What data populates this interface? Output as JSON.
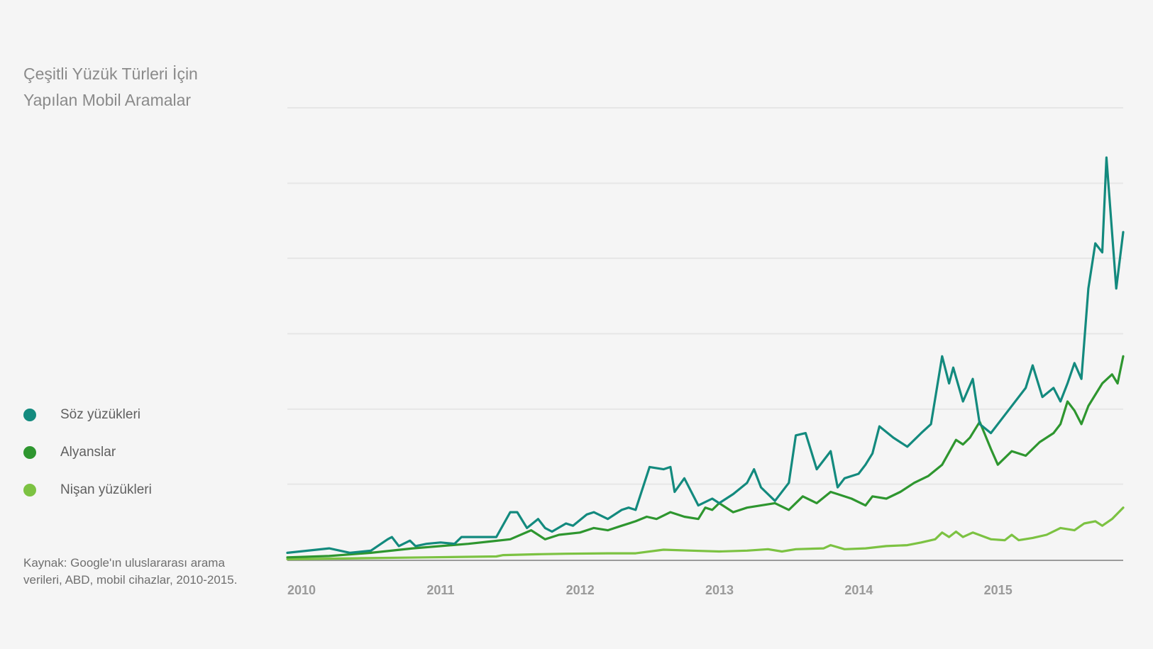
{
  "title": {
    "line1": "Çeşitli Yüzük Türleri İçin",
    "line2": "Yapılan Mobil Aramalar"
  },
  "source": {
    "line1": "Kaynak: Google'ın uluslararası arama",
    "line2": "verileri, ABD, mobil cihazlar, 2010-2015."
  },
  "colors": {
    "soz": "#138a7e",
    "alyans": "#2e962f",
    "nisan": "#7cc242",
    "grid": "#e6e6e6",
    "axis": "#9b9b9b"
  },
  "chart_data": {
    "type": "line",
    "title": "Çeşitli Yüzük Türleri İçin Yapılan Mobil Aramalar",
    "xlabel": "",
    "ylabel": "",
    "x_ticks": [
      "2010",
      "2011",
      "2012",
      "2013",
      "2014",
      "2015"
    ],
    "xlim": [
      2010.0,
      2016.0
    ],
    "ylim": [
      0,
      100
    ],
    "y_gridlines": [
      16.7,
      33.3,
      50,
      66.7,
      83.3,
      100
    ],
    "y_tick_labels_shown": false,
    "legend_position": "left-middle",
    "series": [
      {
        "name": "Söz yüzükleri",
        "color": "#138a7e",
        "points": [
          [
            2010.0,
            1.5
          ],
          [
            2010.3,
            2.5
          ],
          [
            2010.45,
            1.5
          ],
          [
            2010.6,
            2.0
          ],
          [
            2010.72,
            4.5
          ],
          [
            2010.75,
            5.0
          ],
          [
            2010.8,
            3.0
          ],
          [
            2010.88,
            4.2
          ],
          [
            2010.92,
            3.0
          ],
          [
            2011.0,
            3.5
          ],
          [
            2011.1,
            3.8
          ],
          [
            2011.2,
            3.5
          ],
          [
            2011.25,
            5.0
          ],
          [
            2011.5,
            5.0
          ],
          [
            2011.6,
            10.5
          ],
          [
            2011.65,
            10.5
          ],
          [
            2011.72,
            7.0
          ],
          [
            2011.8,
            9.0
          ],
          [
            2011.85,
            7.0
          ],
          [
            2011.9,
            6.2
          ],
          [
            2012.0,
            8.0
          ],
          [
            2012.05,
            7.5
          ],
          [
            2012.15,
            10.0
          ],
          [
            2012.2,
            10.5
          ],
          [
            2012.3,
            9.0
          ],
          [
            2012.4,
            11.0
          ],
          [
            2012.45,
            11.5
          ],
          [
            2012.5,
            11.0
          ],
          [
            2012.6,
            20.5
          ],
          [
            2012.7,
            20.0
          ],
          [
            2012.75,
            20.5
          ],
          [
            2012.78,
            15.0
          ],
          [
            2012.85,
            18.0
          ],
          [
            2012.95,
            12.0
          ],
          [
            2013.05,
            13.5
          ],
          [
            2013.1,
            12.5
          ],
          [
            2013.2,
            14.5
          ],
          [
            2013.3,
            17.0
          ],
          [
            2013.35,
            20.0
          ],
          [
            2013.4,
            16.0
          ],
          [
            2013.5,
            13.0
          ],
          [
            2013.6,
            17.0
          ],
          [
            2013.65,
            27.5
          ],
          [
            2013.72,
            28.0
          ],
          [
            2013.8,
            20.0
          ],
          [
            2013.9,
            24.0
          ],
          [
            2013.95,
            16.0
          ],
          [
            2014.0,
            18.0
          ],
          [
            2014.1,
            19.0
          ],
          [
            2014.15,
            21.0
          ],
          [
            2014.2,
            23.5
          ],
          [
            2014.25,
            29.5
          ],
          [
            2014.35,
            27.0
          ],
          [
            2014.45,
            25.0
          ],
          [
            2014.55,
            28.0
          ],
          [
            2014.62,
            30.0
          ],
          [
            2014.7,
            45.0
          ],
          [
            2014.75,
            39.0
          ],
          [
            2014.78,
            42.5
          ],
          [
            2014.85,
            35.0
          ],
          [
            2014.92,
            40.0
          ],
          [
            2014.97,
            30.0
          ],
          [
            2015.05,
            28.0
          ],
          [
            2015.15,
            32.0
          ],
          [
            2015.3,
            38.0
          ],
          [
            2015.35,
            43.0
          ],
          [
            2015.42,
            36.0
          ],
          [
            2015.5,
            38.0
          ],
          [
            2015.55,
            35.0
          ],
          [
            2015.6,
            39.0
          ],
          [
            2015.65,
            43.5
          ],
          [
            2015.7,
            40.0
          ],
          [
            2015.75,
            60.0
          ],
          [
            2015.8,
            70.0
          ],
          [
            2015.85,
            68.0
          ],
          [
            2015.88,
            89.0
          ],
          [
            2015.95,
            60.0
          ],
          [
            2016.0,
            72.5
          ]
        ]
      },
      {
        "name": "Alyanslar",
        "color": "#2e962f",
        "points": [
          [
            2010.0,
            0.5
          ],
          [
            2010.3,
            0.8
          ],
          [
            2010.6,
            1.5
          ],
          [
            2010.9,
            2.5
          ],
          [
            2011.1,
            3.0
          ],
          [
            2011.3,
            3.5
          ],
          [
            2011.45,
            4.0
          ],
          [
            2011.6,
            4.5
          ],
          [
            2011.75,
            6.5
          ],
          [
            2011.85,
            4.5
          ],
          [
            2011.95,
            5.5
          ],
          [
            2012.1,
            6.0
          ],
          [
            2012.2,
            7.0
          ],
          [
            2012.3,
            6.5
          ],
          [
            2012.4,
            7.5
          ],
          [
            2012.5,
            8.5
          ],
          [
            2012.58,
            9.5
          ],
          [
            2012.65,
            9.0
          ],
          [
            2012.75,
            10.5
          ],
          [
            2012.85,
            9.5
          ],
          [
            2012.95,
            9.0
          ],
          [
            2013.0,
            11.5
          ],
          [
            2013.05,
            11.0
          ],
          [
            2013.1,
            12.5
          ],
          [
            2013.2,
            10.5
          ],
          [
            2013.3,
            11.5
          ],
          [
            2013.4,
            12.0
          ],
          [
            2013.5,
            12.5
          ],
          [
            2013.6,
            11.0
          ],
          [
            2013.7,
            14.0
          ],
          [
            2013.8,
            12.5
          ],
          [
            2013.9,
            15.0
          ],
          [
            2013.95,
            14.5
          ],
          [
            2014.05,
            13.5
          ],
          [
            2014.15,
            12.0
          ],
          [
            2014.2,
            14.0
          ],
          [
            2014.3,
            13.5
          ],
          [
            2014.4,
            15.0
          ],
          [
            2014.5,
            17.0
          ],
          [
            2014.6,
            18.5
          ],
          [
            2014.7,
            21.0
          ],
          [
            2014.8,
            26.5
          ],
          [
            2014.85,
            25.5
          ],
          [
            2014.9,
            27.0
          ],
          [
            2014.97,
            30.5
          ],
          [
            2015.05,
            24.5
          ],
          [
            2015.1,
            21.0
          ],
          [
            2015.2,
            24.0
          ],
          [
            2015.3,
            23.0
          ],
          [
            2015.4,
            26.0
          ],
          [
            2015.5,
            28.0
          ],
          [
            2015.55,
            30.0
          ],
          [
            2015.6,
            35.0
          ],
          [
            2015.65,
            33.0
          ],
          [
            2015.7,
            30.0
          ],
          [
            2015.75,
            34.0
          ],
          [
            2015.85,
            39.0
          ],
          [
            2015.92,
            41.0
          ],
          [
            2015.96,
            39.0
          ],
          [
            2016.0,
            45.0
          ]
        ]
      },
      {
        "name": "Nişan yüzükleri",
        "color": "#7cc242",
        "points": [
          [
            2010.0,
            0.1
          ],
          [
            2010.5,
            0.3
          ],
          [
            2011.0,
            0.5
          ],
          [
            2011.5,
            0.7
          ],
          [
            2011.55,
            1.0
          ],
          [
            2011.8,
            1.2
          ],
          [
            2012.0,
            1.3
          ],
          [
            2012.3,
            1.4
          ],
          [
            2012.5,
            1.4
          ],
          [
            2012.7,
            2.2
          ],
          [
            2012.9,
            2.0
          ],
          [
            2013.1,
            1.8
          ],
          [
            2013.3,
            2.0
          ],
          [
            2013.45,
            2.3
          ],
          [
            2013.55,
            1.8
          ],
          [
            2013.65,
            2.3
          ],
          [
            2013.85,
            2.5
          ],
          [
            2013.9,
            3.2
          ],
          [
            2014.0,
            2.3
          ],
          [
            2014.15,
            2.5
          ],
          [
            2014.3,
            3.0
          ],
          [
            2014.45,
            3.2
          ],
          [
            2014.55,
            3.8
          ],
          [
            2014.65,
            4.5
          ],
          [
            2014.7,
            6.0
          ],
          [
            2014.75,
            5.0
          ],
          [
            2014.8,
            6.2
          ],
          [
            2014.85,
            5.0
          ],
          [
            2014.92,
            6.0
          ],
          [
            2015.05,
            4.5
          ],
          [
            2015.15,
            4.3
          ],
          [
            2015.2,
            5.5
          ],
          [
            2015.25,
            4.3
          ],
          [
            2015.35,
            4.8
          ],
          [
            2015.45,
            5.5
          ],
          [
            2015.55,
            7.0
          ],
          [
            2015.65,
            6.5
          ],
          [
            2015.72,
            8.0
          ],
          [
            2015.8,
            8.5
          ],
          [
            2015.85,
            7.5
          ],
          [
            2015.92,
            9.0
          ],
          [
            2016.0,
            11.5
          ]
        ]
      }
    ]
  }
}
